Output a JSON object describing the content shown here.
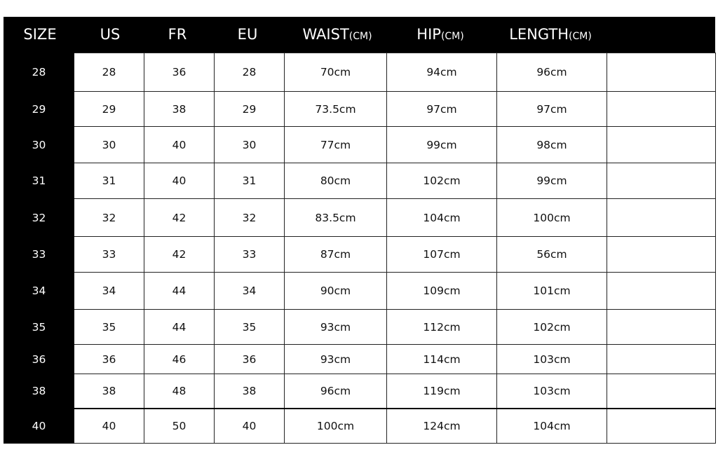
{
  "header": [
    {
      "main": "SIZE",
      "unit": ""
    },
    {
      "main": "US",
      "unit": ""
    },
    {
      "main": "FR",
      "unit": ""
    },
    {
      "main": "EU",
      "unit": ""
    },
    {
      "main": "WAIST",
      "unit": "(CM)"
    },
    {
      "main": "HIP",
      "unit": "(CM)"
    },
    {
      "main": "LENGTH",
      "unit": "(CM)"
    }
  ],
  "rows": [
    [
      "28",
      "28",
      "36",
      "28",
      "70cm",
      "94cm",
      "96cm"
    ],
    [
      "29",
      "29",
      "38",
      "29",
      "73.5cm",
      "97cm",
      "97cm"
    ],
    [
      "30",
      "30",
      "40",
      "30",
      "77cm",
      "99cm",
      "98cm"
    ],
    [
      "31",
      "31",
      "40",
      "31",
      "80cm",
      "102cm",
      "99cm"
    ],
    [
      "32",
      "32",
      "42",
      "32",
      "83.5cm",
      "104cm",
      "100cm"
    ],
    [
      "33",
      "33",
      "42",
      "33",
      "87cm",
      "107cm",
      "56cm"
    ],
    [
      "34",
      "34",
      "44",
      "34",
      "90cm",
      "109cm",
      "101cm"
    ],
    [
      "35",
      "35",
      "44",
      "35",
      "93cm",
      "112cm",
      "102cm"
    ],
    [
      "36",
      "36",
      "46",
      "36",
      "93cm",
      "114cm",
      "103cm"
    ],
    [
      "38",
      "38",
      "48",
      "38",
      "96cm",
      "119cm",
      "103cm"
    ],
    [
      "40",
      "40",
      "50",
      "40",
      "100cm",
      "124cm",
      "104cm"
    ]
  ],
  "colors": {
    "header_bg": "#000000",
    "header_text": "#ffffff"
  }
}
